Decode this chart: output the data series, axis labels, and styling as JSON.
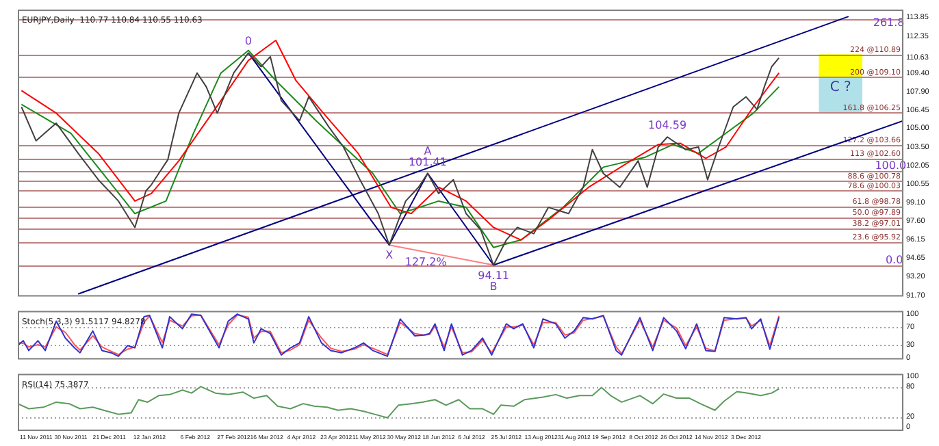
{
  "chart_data": [
    {
      "type": "line",
      "title": "EURJPY,Daily  110.77 110.84 110.55 110.63",
      "marker": "none",
      "tick_labels": "y",
      "legend": false,
      "xlim": [
        "2011-11-01",
        "2013-02-27"
      ],
      "ylim": [
        91.6,
        114.45
      ],
      "yticks": [
        113.85,
        112.35,
        110.63,
        {
          "value": 109.4,
          "label": "109.40"
        },
        {
          "value": 107.9,
          "label": "107.90"
        },
        106.45,
        {
          "value": 105,
          "label": "105.00"
        },
        {
          "value": 103.5,
          "label": "103.50"
        },
        102.05,
        100.55,
        {
          "value": 99.1,
          "label": "99.10"
        },
        {
          "value": 97.6,
          "label": "97.60"
        },
        96.15,
        94.65,
        {
          "value": 93.2,
          "label": "93.20"
        },
        {
          "value": 91.7,
          "label": "91.70"
        }
      ],
      "x": [
        "2011-11-03",
        "2011-11-11",
        "2011-11-22",
        "2011-12-04",
        "2011-12-15",
        "2011-12-26",
        "2012-01-04",
        "2012-01-10",
        "2012-01-13",
        "2012-01-22",
        "2012-01-28",
        "2012-02-07",
        "2012-02-12",
        "2012-02-18",
        "2012-02-27",
        "2012-03-06",
        "2012-03-13",
        "2012-03-18",
        "2012-03-24",
        "2012-04-03",
        "2012-04-08",
        "2012-04-19",
        "2012-04-27",
        "2012-05-06",
        "2012-05-16",
        "2012-05-22",
        "2012-05-31",
        "2012-06-07",
        "2012-06-12",
        "2012-06-18",
        "2012-06-26",
        "2012-07-03",
        "2012-07-11",
        "2012-07-18",
        "2012-07-25",
        "2012-07-31",
        "2012-08-09",
        "2012-08-17",
        "2012-08-28",
        "2012-09-05",
        "2012-09-10",
        "2012-09-16",
        "2012-09-25",
        "2012-10-05",
        "2012-10-10",
        "2012-10-16",
        "2012-10-21",
        "2012-10-31",
        "2012-11-07",
        "2012-11-12",
        "2012-11-18",
        "2012-11-26",
        "2012-12-03",
        "2012-12-09",
        "2012-12-13",
        "2012-12-17",
        "2012-12-21"
      ],
      "series": [
        {
          "type": "line",
          "color": "#404040",
          "values": [
            106.7,
            104.0,
            105.4,
            103.0,
            100.9,
            99.2,
            97.1,
            100.0,
            100.5,
            102.5,
            106.2,
            109.4,
            108.3,
            106.2,
            109.4,
            111.0,
            109.9,
            110.7,
            107.2,
            105.6,
            107.5,
            105.1,
            103.5,
            100.9,
            98.2,
            95.7,
            99.2,
            100.3,
            101.4,
            99.8,
            100.9,
            98.2,
            96.9,
            94.1,
            96.1,
            97.1,
            96.6,
            98.7,
            98.2,
            100.3,
            103.3,
            101.4,
            100.3,
            102.4,
            100.3,
            103.5,
            104.3,
            103.3,
            103.5,
            100.9,
            103.5,
            106.7,
            107.5,
            106.5,
            108.3,
            109.9,
            110.6
          ]
        },
        {
          "type": "line",
          "color": "#ff0000",
          "x": [
            "2011-11-03",
            "2011-11-22",
            "2011-12-15",
            "2012-01-04",
            "2012-01-13",
            "2012-01-28",
            "2012-02-20",
            "2012-03-06",
            "2012-03-21",
            "2012-04-01",
            "2012-04-16",
            "2012-05-05",
            "2012-05-23",
            "2012-06-03",
            "2012-06-18",
            "2012-07-03",
            "2012-07-18",
            "2012-08-02",
            "2012-08-17",
            "2012-09-08",
            "2012-10-01",
            "2012-10-16",
            "2012-10-28",
            "2012-11-11",
            "2012-11-22",
            "2012-12-07",
            "2012-12-21"
          ],
          "values": [
            108.0,
            106.2,
            103.0,
            99.2,
            99.8,
            102.4,
            107.2,
            110.4,
            112.0,
            108.8,
            106.2,
            103.0,
            98.7,
            98.2,
            100.3,
            99.2,
            97.1,
            96.1,
            97.7,
            100.3,
            102.4,
            103.7,
            103.8,
            102.6,
            103.5,
            106.7,
            109.4
          ]
        },
        {
          "type": "line",
          "color": "#1a8a1a",
          "x": [
            "2011-11-03",
            "2011-11-30",
            "2012-01-04",
            "2012-01-21",
            "2012-02-05",
            "2012-02-20",
            "2012-03-06",
            "2012-03-21",
            "2012-04-12",
            "2012-05-13",
            "2012-05-28",
            "2012-06-18",
            "2012-07-03",
            "2012-07-18",
            "2012-08-02",
            "2012-08-25",
            "2012-09-16",
            "2012-10-09",
            "2012-10-24",
            "2012-11-07",
            "2012-11-22",
            "2012-12-07",
            "2012-12-21"
          ],
          "values": [
            106.9,
            104.6,
            98.2,
            99.2,
            104.6,
            109.4,
            111.2,
            108.8,
            105.6,
            101.4,
            98.2,
            99.2,
            98.7,
            95.5,
            96.1,
            98.7,
            101.9,
            102.7,
            103.7,
            103.0,
            104.6,
            106.2,
            108.3
          ]
        },
        {
          "type": "line",
          "color": "#000080",
          "x": [
            "2011-12-04",
            "2013-01-28"
          ],
          "values": [
            91.8,
            113.9
          ]
        },
        {
          "type": "line",
          "color": "#000080",
          "x": [
            "2012-07-18",
            "2013-02-27"
          ],
          "values": [
            94.1,
            105.6
          ]
        },
        {
          "type": "line",
          "color": "#000080",
          "x": [
            "2012-03-06",
            "2012-05-22",
            "2012-06-12",
            "2012-07-18"
          ],
          "values": [
            111.0,
            95.7,
            101.4,
            94.1
          ]
        },
        {
          "type": "line",
          "color": "#ff8080",
          "x": [
            "2012-05-22",
            "2012-07-18"
          ],
          "values": [
            95.7,
            94.1
          ]
        }
      ],
      "ref_lines": [
        {
          "axis": "y",
          "value": 113.72,
          "color": "#c08080"
        },
        {
          "axis": "y",
          "value": 110.89,
          "label": "224 @110.89",
          "color": "#c08080"
        },
        {
          "axis": "y",
          "value": 109.1,
          "label": "200 @109.10",
          "color": "#c08080"
        },
        {
          "axis": "y",
          "value": 106.25,
          "label": "161.8 @106.25",
          "color": "#c08080"
        },
        {
          "axis": "y",
          "value": 103.66,
          "label": "127.2 @103.66",
          "color": "#c08080"
        },
        {
          "axis": "y",
          "value": 102.6,
          "label": "113 @102.60",
          "color": "#c08080"
        },
        {
          "axis": "y",
          "value": 101.64,
          "color": "#c08080"
        },
        {
          "axis": "y",
          "value": 100.78,
          "label": "88.6 @100.78",
          "color": "#c08080"
        },
        {
          "axis": "y",
          "value": 100.03,
          "label": "78.6 @100.03",
          "color": "#c08080"
        },
        {
          "axis": "y",
          "value": 98.78,
          "label": "61.8 @98.78",
          "color": "#c08080"
        },
        {
          "axis": "y",
          "value": 97.89,
          "label": "50.0 @97.89",
          "color": "#c08080"
        },
        {
          "axis": "y",
          "value": 97.01,
          "label": "38.2 @97.01",
          "color": "#c08080"
        },
        {
          "axis": "y",
          "value": 95.92,
          "label": "23.6 @95.92",
          "color": "#c08080"
        },
        {
          "axis": "y",
          "value": 94.11,
          "color": "#c08080"
        }
      ],
      "bands": [
        {
          "axis": "y",
          "from": 109.1,
          "to": 110.89,
          "color": "#ffff00"
        },
        {
          "axis": "y",
          "from": 106.25,
          "to": 109.1,
          "color": "#b0e0e8",
          "label": "C ?"
        }
      ],
      "annotations": [
        {
          "text": "0",
          "x": "2012-03-06",
          "y": 111.0
        },
        {
          "text": "X",
          "x": "2012-05-22",
          "y": 95.7
        },
        {
          "text": "101.41",
          "x": "2012-06-12",
          "y": 101.4
        },
        {
          "text": "A",
          "x": "2012-06-12",
          "y": 101.4
        },
        {
          "text": "127.2%",
          "x": "2012-06-11",
          "y": 94.3
        },
        {
          "text": "94.11",
          "x": "2012-07-18",
          "y": 94.1
        },
        {
          "text": "B",
          "x": "2012-07-18",
          "y": 94.1
        },
        {
          "text": "104.59",
          "x": "2012-10-21",
          "y": 104.3
        },
        {
          "text": "261.8",
          "x": "2013-02-19",
          "y": 113.35
        },
        {
          "text": "100.0",
          "x": "2013-02-20",
          "y": 101.97
        },
        {
          "text": "0.0",
          "x": "2013-02-22",
          "y": 94.45
        }
      ]
    },
    {
      "type": "line",
      "title": "Stoch(5,3,3) 91.5117 94.8278",
      "marker": "none",
      "tick_labels": "y",
      "legend": false,
      "xlim": [
        "2011-11-01",
        "2013-02-27"
      ],
      "ylim": [
        -3,
        106
      ],
      "yticks": [
        0,
        30,
        70,
        100
      ],
      "ref_lines": [
        {
          "axis": "y",
          "value": 30,
          "color": "#a0a0a0",
          "line_style": "dotted"
        },
        {
          "axis": "y",
          "value": 70,
          "color": "#a0a0a0",
          "line_style": "dotted"
        }
      ],
      "x": [
        "2011-11-01",
        "2011-11-04",
        "2011-11-07",
        "2011-11-12",
        "2011-11-16",
        "2011-11-22",
        "2011-11-27",
        "2011-12-02",
        "2011-12-05",
        "2011-12-12",
        "2011-12-17",
        "2011-12-22",
        "2011-12-26",
        "2011-12-31",
        "2012-01-04",
        "2012-01-09",
        "2012-01-12",
        "2012-01-19",
        "2012-01-23",
        "2012-01-30",
        "2012-02-04",
        "2012-02-09",
        "2012-02-19",
        "2012-02-24",
        "2012-02-29",
        "2012-03-06",
        "2012-03-09",
        "2012-03-13",
        "2012-03-18",
        "2012-03-24",
        "2012-03-29",
        "2012-04-03",
        "2012-04-08",
        "2012-04-15",
        "2012-04-20",
        "2012-04-26",
        "2012-05-03",
        "2012-05-08",
        "2012-05-13",
        "2012-05-21",
        "2012-05-28",
        "2012-06-05",
        "2012-06-10",
        "2012-06-13",
        "2012-06-16",
        "2012-06-21",
        "2012-06-25",
        "2012-07-01",
        "2012-07-06",
        "2012-07-12",
        "2012-07-17",
        "2012-07-25",
        "2012-07-29",
        "2012-08-03",
        "2012-08-09",
        "2012-08-14",
        "2012-08-21",
        "2012-08-26",
        "2012-08-31",
        "2012-09-05",
        "2012-09-10",
        "2012-09-16",
        "2012-09-23",
        "2012-09-26",
        "2012-10-06",
        "2012-10-13",
        "2012-10-19",
        "2012-10-26",
        "2012-10-31",
        "2012-11-06",
        "2012-11-11",
        "2012-11-16",
        "2012-11-21",
        "2012-11-28",
        "2012-12-03",
        "2012-12-06",
        "2012-12-11",
        "2012-12-16",
        "2012-12-21"
      ],
      "series": [
        {
          "type": "line",
          "color": "#3333cc",
          "values": [
            28,
            39,
            17,
            39,
            17,
            83,
            45,
            23,
            12,
            61,
            17,
            12,
            4,
            28,
            23,
            93,
            96,
            23,
            93,
            66,
            99,
            96,
            23,
            83,
            99,
            88,
            34,
            66,
            55,
            7,
            23,
            34,
            93,
            34,
            17,
            12,
            23,
            34,
            17,
            4,
            88,
            50,
            52,
            55,
            77,
            17,
            77,
            7,
            17,
            45,
            7,
            77,
            66,
            77,
            23,
            88,
            77,
            45,
            61,
            91,
            88,
            96,
            17,
            7,
            91,
            17,
            91,
            61,
            21,
            77,
            17,
            15,
            91,
            88,
            91,
            66,
            88,
            20,
            91.5
          ]
        },
        {
          "type": "line",
          "color": "#ff5555",
          "values": [
            35,
            33,
            25,
            30,
            25,
            70,
            58,
            30,
            18,
            50,
            25,
            15,
            8,
            20,
            25,
            80,
            95,
            35,
            85,
            72,
            95,
            97,
            30,
            75,
            97,
            92,
            45,
            60,
            60,
            12,
            18,
            30,
            85,
            45,
            22,
            15,
            20,
            30,
            22,
            8,
            80,
            55,
            52,
            53,
            72,
            25,
            70,
            12,
            14,
            40,
            12,
            70,
            70,
            74,
            30,
            80,
            80,
            52,
            57,
            85,
            89,
            94,
            25,
            10,
            85,
            25,
            85,
            68,
            28,
            70,
            22,
            16,
            85,
            89,
            90,
            72,
            85,
            28,
            94.8
          ]
        }
      ]
    },
    {
      "type": "line",
      "title": "RSI(14) 75.3877",
      "marker": "none",
      "legend": false,
      "xlim": [
        "2011-11-01",
        "2013-02-27"
      ],
      "ylim": [
        -8,
        105
      ],
      "yticks": [
        0,
        20,
        80,
        100
      ],
      "xticks": [
        {
          "value": "2011-11-11",
          "label": "11 Nov 2011"
        },
        {
          "value": "2011-11-30",
          "label": "30 Nov 2011"
        },
        {
          "value": "2011-12-21",
          "label": "21 Dec 2011"
        },
        {
          "value": "2012-01-12",
          "label": "12 Jan 2012"
        },
        {
          "value": "2012-02-06",
          "label": "6 Feb 2012"
        },
        {
          "value": "2012-02-27",
          "label": "27 Feb 2012"
        },
        {
          "value": "2012-03-16",
          "label": "16 Mar 2012"
        },
        {
          "value": "2012-04-04",
          "label": "4 Apr 2012"
        },
        {
          "value": "2012-04-23",
          "label": "23 Apr 2012"
        },
        {
          "value": "2012-05-11",
          "label": "11 May 2012"
        },
        {
          "value": "2012-05-30",
          "label": "30 May 2012"
        },
        {
          "value": "2012-06-18",
          "label": "18 Jun 2012"
        },
        {
          "value": "2012-07-06",
          "label": "6 Jul 2012"
        },
        {
          "value": "2012-07-25",
          "label": "25 Jul 2012"
        },
        {
          "value": "2012-08-13",
          "label": "13 Aug 2012"
        },
        {
          "value": "2012-08-31",
          "label": "31 Aug 2012"
        },
        {
          "value": "2012-09-19",
          "label": "19 Sep 2012"
        },
        {
          "value": "2012-10-08",
          "label": "8 Oct 2012"
        },
        {
          "value": "2012-10-26",
          "label": "26 Oct 2012"
        },
        {
          "value": "2012-11-14",
          "label": "14 Nov 2012"
        },
        {
          "value": "2012-12-03",
          "label": "3 Dec 2012"
        }
      ],
      "ref_lines": [
        {
          "axis": "y",
          "value": 20,
          "color": "#a0a0a0",
          "line_style": "dotted"
        },
        {
          "axis": "y",
          "value": 80,
          "color": "#a0a0a0",
          "line_style": "dotted"
        }
      ],
      "x": [
        "2011-11-01",
        "2011-11-07",
        "2011-11-15",
        "2011-11-22",
        "2011-11-29",
        "2011-12-05",
        "2011-12-12",
        "2011-12-20",
        "2011-12-26",
        "2012-01-02",
        "2012-01-06",
        "2012-01-11",
        "2012-01-17",
        "2012-01-23",
        "2012-01-30",
        "2012-02-04",
        "2012-02-09",
        "2012-02-17",
        "2012-02-24",
        "2012-03-03",
        "2012-03-09",
        "2012-03-16",
        "2012-03-22",
        "2012-03-29",
        "2012-04-05",
        "2012-04-11",
        "2012-04-18",
        "2012-04-24",
        "2012-05-01",
        "2012-05-08",
        "2012-05-14",
        "2012-05-21",
        "2012-05-27",
        "2012-06-03",
        "2012-06-09",
        "2012-06-16",
        "2012-06-22",
        "2012-06-29",
        "2012-07-05",
        "2012-07-12",
        "2012-07-18",
        "2012-07-22",
        "2012-07-29",
        "2012-08-04",
        "2012-08-14",
        "2012-08-21",
        "2012-08-27",
        "2012-09-03",
        "2012-09-10",
        "2012-09-15",
        "2012-09-20",
        "2012-09-26",
        "2012-10-06",
        "2012-10-13",
        "2012-10-19",
        "2012-10-26",
        "2012-11-02",
        "2012-11-08",
        "2012-11-16",
        "2012-11-21",
        "2012-11-28",
        "2012-12-04",
        "2012-12-11",
        "2012-12-17",
        "2012-12-21"
      ],
      "series": [
        {
          "type": "line",
          "color": "#5a9a5a",
          "values": [
            46,
            36,
            39,
            49,
            46,
            36,
            39,
            31,
            25,
            28,
            54,
            49,
            62,
            64,
            73,
            67,
            80,
            67,
            64,
            69,
            57,
            62,
            41,
            36,
            46,
            41,
            39,
            33,
            36,
            31,
            25,
            18,
            43,
            46,
            49,
            54,
            43,
            54,
            36,
            36,
            25,
            43,
            41,
            54,
            59,
            64,
            57,
            62,
            62,
            78,
            62,
            49,
            62,
            46,
            65,
            57,
            57,
            46,
            33,
            51,
            70,
            67,
            62,
            67,
            75.4
          ]
        }
      ]
    }
  ]
}
